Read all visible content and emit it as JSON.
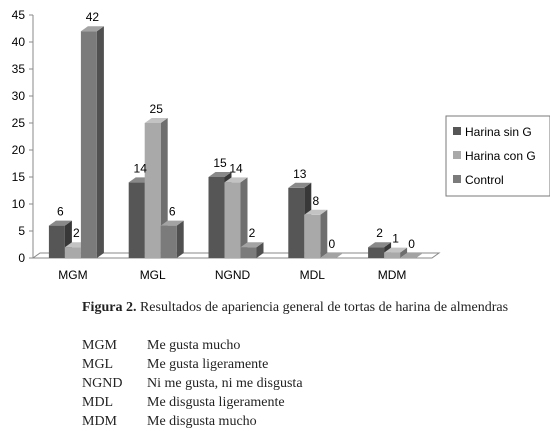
{
  "chart_data": {
    "type": "bar",
    "categories": [
      "MGM",
      "MGL",
      "NGND",
      "MDL",
      "MDM"
    ],
    "series": [
      {
        "name": "Harina sin G",
        "values": [
          6,
          14,
          15,
          13,
          2
        ],
        "color": "#565656"
      },
      {
        "name": "Harina con G",
        "values": [
          2,
          25,
          14,
          8,
          1
        ],
        "color": "#a9a9a9"
      },
      {
        "name": "Control",
        "values": [
          42,
          6,
          2,
          0,
          0
        ],
        "color": "#7b7b7b"
      }
    ],
    "ylim": [
      0,
      45
    ],
    "yticks": [
      0,
      5,
      10,
      15,
      20,
      25,
      30,
      35,
      40,
      45
    ],
    "legend_position": "right",
    "style": "3d-clustered-column",
    "grid": false
  },
  "caption": {
    "label": "Figura 2.",
    "text": "Resultados de apariencia general de tortas de harina de almendras"
  },
  "abbreviations": [
    {
      "code": "MGM",
      "meaning": "Me gusta mucho"
    },
    {
      "code": "MGL",
      "meaning": "Me gusta ligeramente"
    },
    {
      "code": "NGND",
      "meaning": "Ni me gusta, ni me disgusta"
    },
    {
      "code": "MDL",
      "meaning": "Me disgusta ligeramente"
    },
    {
      "code": "MDM",
      "meaning": "Me disgusta mucho"
    }
  ]
}
